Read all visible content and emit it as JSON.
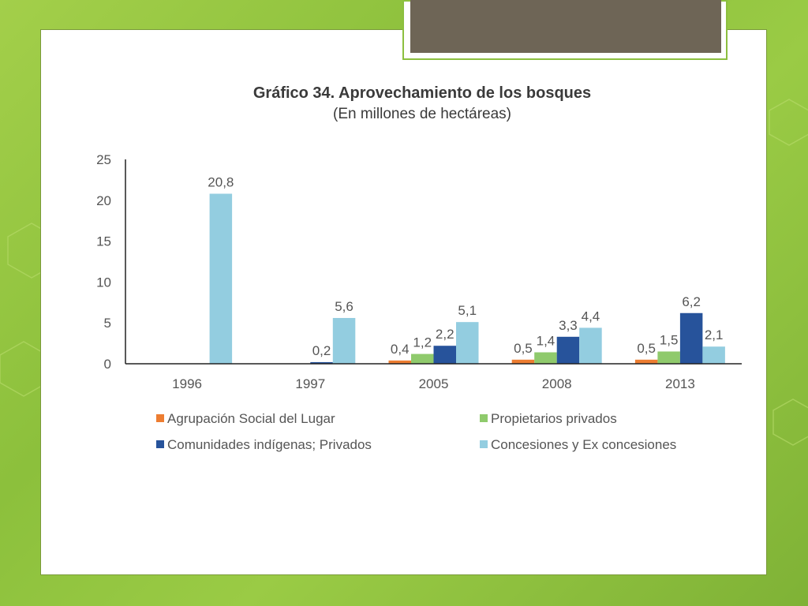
{
  "colors": {
    "agrupacion": "#ed7d31",
    "propietarios": "#8fca6c",
    "comunidades": "#27539b",
    "concesiones": "#93cde0"
  },
  "chart_data": {
    "type": "bar",
    "title": "Gráfico 34. Aprovechamiento de los bosques",
    "subtitle": "(En millones de hectáreas)",
    "categories": [
      "1996",
      "1997",
      "2005",
      "2008",
      "2013"
    ],
    "ylim": [
      0,
      25
    ],
    "yticks": [
      "0",
      "5",
      "10",
      "15",
      "20",
      "25"
    ],
    "grid": false,
    "legend_position": "bottom",
    "series": [
      {
        "name": "Agrupación Social del Lugar",
        "color": "#ed7d31",
        "values": [
          null,
          null,
          0.4,
          0.5,
          0.5
        ],
        "labels": [
          "",
          "",
          "0,4",
          "0,5",
          "0,5"
        ]
      },
      {
        "name": "Propietarios privados",
        "color": "#8fca6c",
        "values": [
          null,
          null,
          1.2,
          1.4,
          1.5
        ],
        "labels": [
          "",
          "",
          "1,2",
          "1,4",
          "1,5"
        ]
      },
      {
        "name": "Comunidades indígenas; Privados",
        "color": "#27539b",
        "values": [
          null,
          0.2,
          2.2,
          3.3,
          6.2
        ],
        "labels": [
          "",
          "0,2",
          "2,2",
          "3,3",
          "6,2"
        ]
      },
      {
        "name": "Concesiones y Ex concesiones",
        "color": "#93cde0",
        "values": [
          20.8,
          5.6,
          5.1,
          4.4,
          2.1
        ],
        "labels": [
          "20,8",
          "5,6",
          "5,1",
          "4,4",
          "2,1"
        ]
      }
    ]
  }
}
